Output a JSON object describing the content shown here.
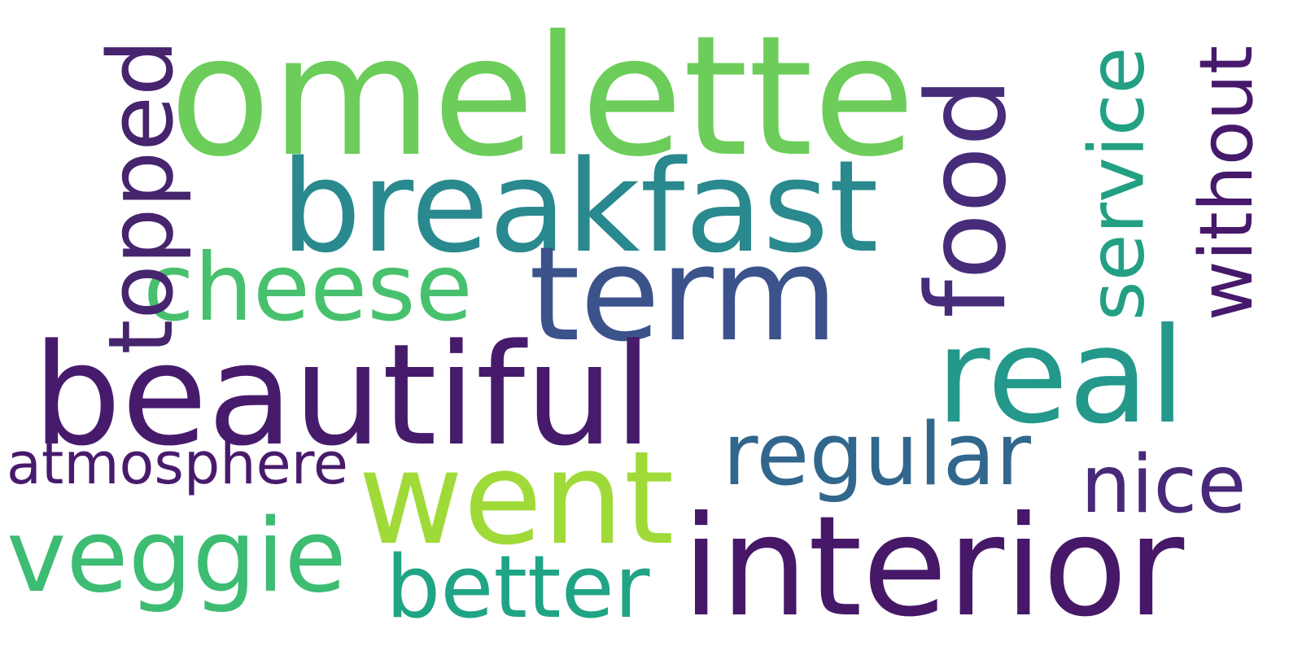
{
  "word_cloud": {
    "words": {
      "omelette": {
        "text": "omelette",
        "color": "#6ccd5a",
        "orientation": "horizontal"
      },
      "breakfast": {
        "text": "breakfast",
        "color": "#29898e",
        "orientation": "horizontal"
      },
      "cheese": {
        "text": "cheese",
        "color": "#48c16e",
        "orientation": "horizontal"
      },
      "term": {
        "text": "term",
        "color": "#3b528b",
        "orientation": "horizontal"
      },
      "beautiful": {
        "text": "beautiful",
        "color": "#471b6c",
        "orientation": "horizontal"
      },
      "real": {
        "text": "real",
        "color": "#23988b",
        "orientation": "horizontal"
      },
      "regular": {
        "text": "regular",
        "color": "#32678d",
        "orientation": "horizontal"
      },
      "atmosphere": {
        "text": "atmosphere",
        "color": "#481a6c",
        "orientation": "horizontal"
      },
      "went": {
        "text": "went",
        "color": "#a0da39",
        "orientation": "horizontal"
      },
      "nice": {
        "text": "nice",
        "color": "#482878",
        "orientation": "horizontal"
      },
      "veggie": {
        "text": "veggie",
        "color": "#3dbc74",
        "orientation": "horizontal"
      },
      "interior": {
        "text": "interior",
        "color": "#471868",
        "orientation": "horizontal"
      },
      "better": {
        "text": "better",
        "color": "#20a486",
        "orientation": "horizontal"
      },
      "topped": {
        "text": "topped",
        "color": "#46246e",
        "orientation": "vertical"
      },
      "food": {
        "text": "food",
        "color": "#472c7a",
        "orientation": "vertical"
      },
      "service": {
        "text": "service",
        "color": "#23a083",
        "orientation": "vertical"
      },
      "without": {
        "text": "without",
        "color": "#46196b",
        "orientation": "vertical"
      }
    }
  }
}
